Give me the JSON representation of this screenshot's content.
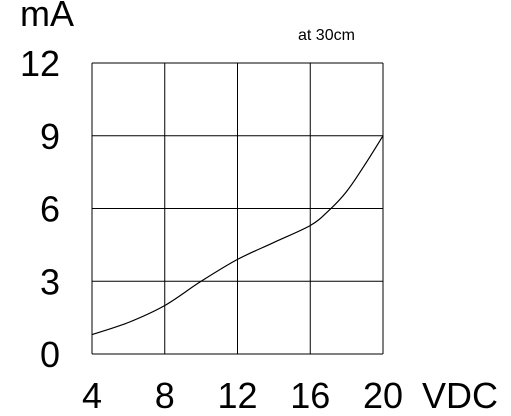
{
  "chart_data": {
    "type": "line",
    "title": "",
    "annotation": "at 30cm",
    "xlabel": "VDC",
    "ylabel": "mA",
    "xlim": [
      4,
      20
    ],
    "ylim": [
      0,
      12
    ],
    "x_ticks": [
      "4",
      "8",
      "12",
      "16",
      "20"
    ],
    "y_ticks": [
      "0",
      "3",
      "6",
      "9",
      "12"
    ],
    "grid": true,
    "series": [
      {
        "x": [
          4,
          6,
          8,
          10,
          12,
          14,
          16,
          17,
          18,
          19,
          20
        ],
        "y": [
          0.8,
          1.3,
          2.0,
          3.0,
          3.9,
          4.6,
          5.3,
          5.9,
          6.7,
          7.8,
          9.0
        ]
      }
    ]
  }
}
